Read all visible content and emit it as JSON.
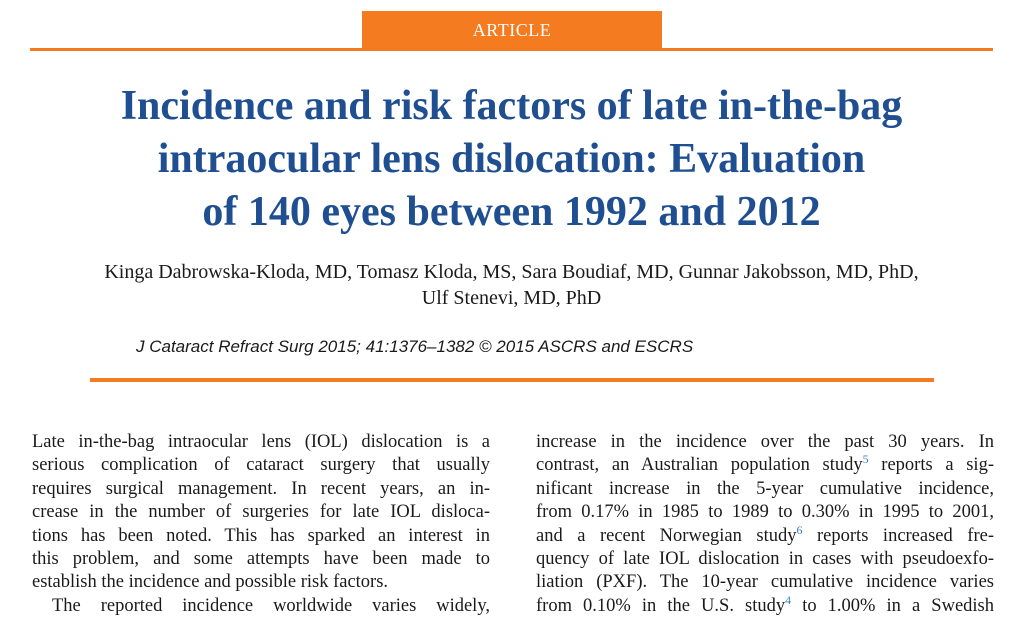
{
  "header": {
    "badge": "ARTICLE"
  },
  "title_lines": [
    "Incidence and risk factors of late in-the-bag",
    "intraocular lens dislocation: Evaluation",
    "of 140 eyes between 1992 and 2012"
  ],
  "authors_lines": [
    "Kinga Dabrowska-Kloda, MD, Tomasz Kloda, MS, Sara Boudiaf, MD, Gunnar Jakobsson, MD, PhD,",
    "Ulf Stenevi, MD, PhD"
  ],
  "citation": "J Cataract Refract Surg 2015; 41:1376–1382 © 2015 ASCRS and ESCRS",
  "left_column": [
    "Late in-the-bag intraocular lens (IOL) dislocation is a",
    "serious complication of cataract surgery that usually",
    "requires surgical management. In recent years, an in-",
    "crease in the number of surgeries for late IOL disloca-",
    "tions has been noted. This has sparked an interest in",
    "this problem, and some attempts have been made to",
    "establish the incidence and possible risk factors.",
    "The reported incidence worldwide varies widely,"
  ],
  "right_column": {
    "l1": "increase in the incidence over the past 30 years. In",
    "l2a": "contrast, an Australian population study",
    "l2ref": "5",
    "l2b": " reports a sig-",
    "l3": "nificant increase in the 5-year cumulative incidence,",
    "l4": "from 0.17% in 1985 to 1989 to 0.30% in 1995 to 2001,",
    "l5a": "and a recent Norwegian study",
    "l5ref": "6",
    "l5b": " reports increased fre-",
    "l6": "quency of late IOL dislocation in cases with pseudoexfo-",
    "l7": "liation (PXF). The 10-year cumulative incidence varies",
    "l8a": "from 0.10% in the U.S. study",
    "l8ref": "4",
    "l8b": " to 1.00% in a Swedish"
  }
}
